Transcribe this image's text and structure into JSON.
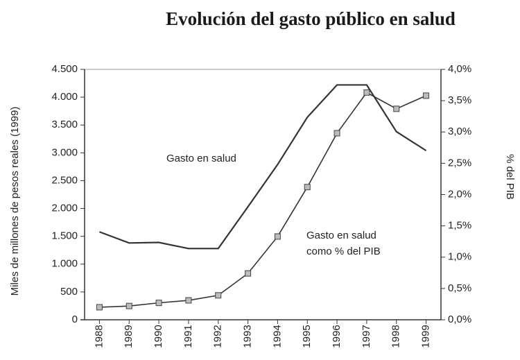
{
  "chart_data": {
    "type": "line",
    "title": "Evolución del gasto público en salud",
    "ylabel": "Miles de millones de pesos reales  (1999)",
    "y2label": "% del PIB",
    "categories": [
      "1988",
      "1989",
      "1990",
      "1991",
      "1992",
      "1993",
      "1994",
      "1995",
      "1996",
      "1997",
      "1998",
      "1999"
    ],
    "series": [
      {
        "name": "Gasto en salud",
        "color": "#333333",
        "values": [
          1580,
          1380,
          1390,
          1280,
          1280,
          2030,
          2790,
          3640,
          4220,
          4220,
          3380,
          3040
        ]
      },
      {
        "name": "Gasto en salud como % del PIB",
        "color": "#333333",
        "axis": "y2",
        "marker": "square",
        "values": [
          0.2,
          0.22,
          0.27,
          0.31,
          0.39,
          0.74,
          1.33,
          2.12,
          2.98,
          3.63,
          3.37,
          3.58
        ]
      }
    ],
    "ylim": [
      0,
      4500
    ],
    "yticks": [
      0,
      500,
      {
        "value": 1000,
        "label": "1.000"
      },
      {
        "value": 1500,
        "label": "1.500"
      },
      {
        "value": 2000,
        "label": "2.000"
      },
      {
        "value": 2500,
        "label": "2.500"
      },
      {
        "value": 3000,
        "label": "3.000"
      },
      {
        "value": 3500,
        "label": "3.500"
      },
      {
        "value": 4000,
        "label": "4.000"
      },
      {
        "value": 4500,
        "label": "4.500"
      }
    ],
    "y2lim": [
      0,
      4
    ],
    "y2ticks": [
      {
        "value": 0,
        "label": "0,0%"
      },
      {
        "value": 0.5,
        "label": "0,5%"
      },
      {
        "value": 1,
        "label": "1,0%"
      },
      {
        "value": 1.5,
        "label": "1,5%"
      },
      {
        "value": 2,
        "label": "2,0%"
      },
      {
        "value": 2.5,
        "label": "2,5%"
      },
      {
        "value": 3,
        "label": "3,0%"
      },
      {
        "value": 3.5,
        "label": "3,5%"
      },
      {
        "value": 4,
        "label": "4,0%"
      }
    ]
  }
}
